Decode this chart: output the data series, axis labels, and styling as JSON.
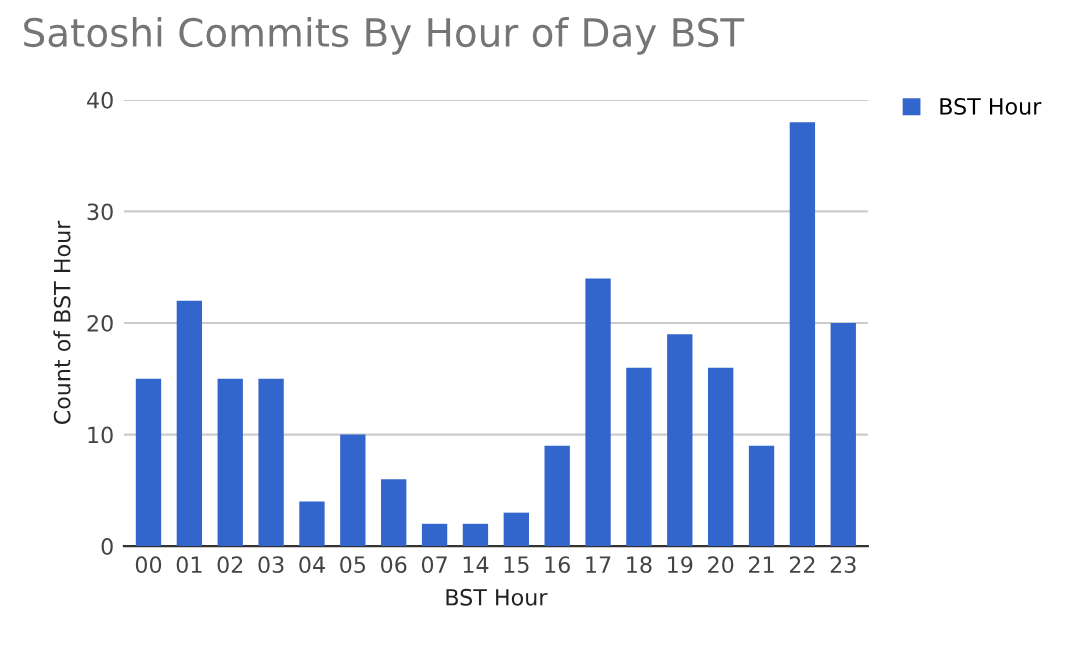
{
  "chart_data": {
    "type": "bar",
    "title": "Satoshi Commits By Hour of Day BST",
    "xlabel": "BST Hour",
    "ylabel": "Count of BST Hour",
    "categories": [
      "00",
      "01",
      "02",
      "03",
      "04",
      "05",
      "06",
      "07",
      "14",
      "15",
      "16",
      "17",
      "18",
      "19",
      "20",
      "21",
      "22",
      "23"
    ],
    "series": [
      {
        "name": "BST Hour",
        "color": "#3366cc",
        "values": [
          15,
          22,
          15,
          15,
          4,
          10,
          6,
          2,
          2,
          3,
          9,
          24,
          16,
          19,
          16,
          9,
          38,
          20
        ]
      }
    ],
    "ylim": [
      0,
      40
    ],
    "yticks": [
      0,
      10,
      20,
      30,
      40
    ],
    "grid": "y",
    "legend": "top right"
  }
}
